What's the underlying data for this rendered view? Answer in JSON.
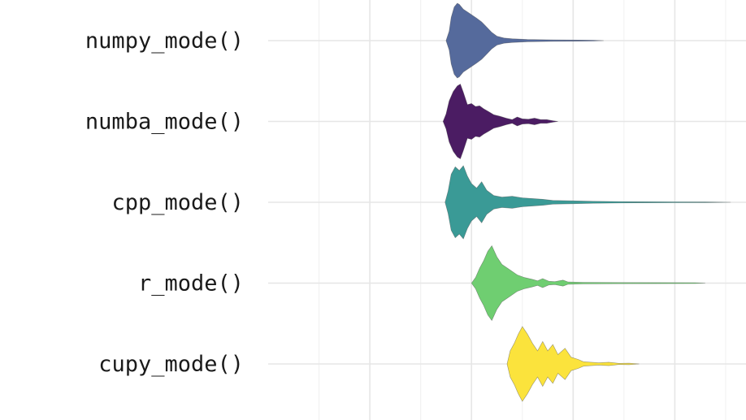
{
  "chart_data": {
    "type": "violin",
    "orientation": "horizontal",
    "title": "",
    "xlabel": "",
    "ylabel": "",
    "xlim": [
      0,
      4.7
    ],
    "grid": true,
    "legend": "none",
    "categories": [
      "numpy_mode()",
      "numba_mode()",
      "cpp_mode()",
      "r_mode()",
      "cupy_mode()"
    ],
    "series": [
      {
        "name": "numpy_mode()",
        "color": "#556a9c",
        "density": [
          [
            1.75,
            0
          ],
          [
            1.78,
            0.25
          ],
          [
            1.8,
            0.62
          ],
          [
            1.83,
            0.9
          ],
          [
            1.86,
            1.0
          ],
          [
            1.88,
            0.97
          ],
          [
            1.92,
            0.84
          ],
          [
            1.98,
            0.73
          ],
          [
            2.05,
            0.6
          ],
          [
            2.1,
            0.5
          ],
          [
            2.15,
            0.36
          ],
          [
            2.2,
            0.22
          ],
          [
            2.25,
            0.12
          ],
          [
            2.32,
            0.07
          ],
          [
            2.4,
            0.05
          ],
          [
            2.55,
            0.03
          ],
          [
            2.8,
            0.02
          ],
          [
            3.05,
            0.015
          ],
          [
            3.2,
            0.01
          ],
          [
            3.3,
            0
          ]
        ]
      },
      {
        "name": "numba_mode()",
        "color": "#4b1c63",
        "density": [
          [
            1.72,
            0
          ],
          [
            1.75,
            0.2
          ],
          [
            1.78,
            0.55
          ],
          [
            1.82,
            0.8
          ],
          [
            1.86,
            0.95
          ],
          [
            1.89,
            1.0
          ],
          [
            1.92,
            0.78
          ],
          [
            1.96,
            0.45
          ],
          [
            2.0,
            0.48
          ],
          [
            2.04,
            0.4
          ],
          [
            2.08,
            0.42
          ],
          [
            2.12,
            0.34
          ],
          [
            2.17,
            0.26
          ],
          [
            2.22,
            0.18
          ],
          [
            2.28,
            0.14
          ],
          [
            2.34,
            0.09
          ],
          [
            2.4,
            0.05
          ],
          [
            2.45,
            0.12
          ],
          [
            2.5,
            0.07
          ],
          [
            2.56,
            0.06
          ],
          [
            2.62,
            0.09
          ],
          [
            2.68,
            0.05
          ],
          [
            2.74,
            0.05
          ],
          [
            2.8,
            0.02
          ],
          [
            2.85,
            0
          ]
        ]
      },
      {
        "name": "cpp_mode()",
        "color": "#3a9a96",
        "density": [
          [
            1.74,
            0
          ],
          [
            1.77,
            0.3
          ],
          [
            1.8,
            0.75
          ],
          [
            1.84,
            0.95
          ],
          [
            1.88,
            0.85
          ],
          [
            1.92,
            0.98
          ],
          [
            1.96,
            0.7
          ],
          [
            2.0,
            0.5
          ],
          [
            2.05,
            0.38
          ],
          [
            2.1,
            0.55
          ],
          [
            2.15,
            0.32
          ],
          [
            2.22,
            0.18
          ],
          [
            2.3,
            0.14
          ],
          [
            2.4,
            0.16
          ],
          [
            2.5,
            0.12
          ],
          [
            2.6,
            0.1
          ],
          [
            2.7,
            0.08
          ],
          [
            2.8,
            0.05
          ],
          [
            3.0,
            0.04
          ],
          [
            3.2,
            0.025
          ],
          [
            3.6,
            0.015
          ],
          [
            4.0,
            0.01
          ],
          [
            4.3,
            0.008
          ],
          [
            4.55,
            0
          ]
        ]
      },
      {
        "name": "r_mode()",
        "color": "#6fce71",
        "density": [
          [
            2.0,
            0
          ],
          [
            2.04,
            0.15
          ],
          [
            2.08,
            0.4
          ],
          [
            2.12,
            0.6
          ],
          [
            2.16,
            0.85
          ],
          [
            2.2,
            1.0
          ],
          [
            2.25,
            0.7
          ],
          [
            2.3,
            0.5
          ],
          [
            2.38,
            0.35
          ],
          [
            2.45,
            0.22
          ],
          [
            2.52,
            0.15
          ],
          [
            2.6,
            0.1
          ],
          [
            2.65,
            0.06
          ],
          [
            2.7,
            0.12
          ],
          [
            2.76,
            0.05
          ],
          [
            2.82,
            0.04
          ],
          [
            2.9,
            0.08
          ],
          [
            2.95,
            0.03
          ],
          [
            3.1,
            0.02
          ],
          [
            3.4,
            0.015
          ],
          [
            3.8,
            0.012
          ],
          [
            4.2,
            0.01
          ],
          [
            4.3,
            0
          ]
        ]
      },
      {
        "name": "cupy_mode()",
        "color": "#fbe33c",
        "density": [
          [
            2.35,
            0
          ],
          [
            2.38,
            0.35
          ],
          [
            2.42,
            0.55
          ],
          [
            2.46,
            0.8
          ],
          [
            2.5,
            1.0
          ],
          [
            2.55,
            0.8
          ],
          [
            2.6,
            0.55
          ],
          [
            2.65,
            0.35
          ],
          [
            2.7,
            0.6
          ],
          [
            2.75,
            0.35
          ],
          [
            2.8,
            0.52
          ],
          [
            2.85,
            0.25
          ],
          [
            2.92,
            0.42
          ],
          [
            2.98,
            0.18
          ],
          [
            3.05,
            0.12
          ],
          [
            3.1,
            0.06
          ],
          [
            3.15,
            0.05
          ],
          [
            3.25,
            0.03
          ],
          [
            3.35,
            0.045
          ],
          [
            3.45,
            0.015
          ],
          [
            3.55,
            0.02
          ],
          [
            3.65,
            0
          ]
        ]
      }
    ],
    "x_gridlines_major": [
      1,
      2,
      3,
      4
    ],
    "x_gridlines_minor": [
      0.5,
      1.5,
      2.5,
      3.5,
      4.5
    ]
  }
}
